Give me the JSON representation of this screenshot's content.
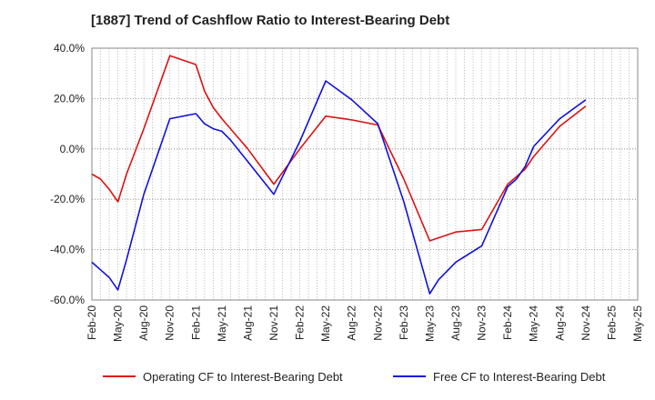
{
  "chart_data": {
    "type": "line",
    "title": "[1887]  Trend of Cashflow Ratio to Interest-Bearing Debt",
    "xlabel": "",
    "ylabel": "",
    "x_range": [
      "2020-02",
      "2025-05"
    ],
    "ylim": [
      -60,
      40
    ],
    "y_ticks": [
      40,
      20,
      0,
      -20,
      -40,
      -60
    ],
    "y_tick_labels": [
      "40.0%",
      "20.0%",
      "0.0%",
      "-20.0%",
      "-40.0%",
      "-60.0%"
    ],
    "x_tick_dates": [
      "2020-02",
      "2020-05",
      "2020-08",
      "2020-11",
      "2021-02",
      "2021-05",
      "2021-08",
      "2021-11",
      "2022-02",
      "2022-05",
      "2022-08",
      "2022-11",
      "2023-02",
      "2023-05",
      "2023-08",
      "2023-11",
      "2024-02",
      "2024-05",
      "2024-08",
      "2024-11",
      "2025-02",
      "2025-05"
    ],
    "x_tick_labels": [
      "Feb-20",
      "May-20",
      "Aug-20",
      "Nov-20",
      "Feb-21",
      "May-21",
      "Aug-21",
      "Nov-21",
      "Feb-22",
      "May-22",
      "Aug-22",
      "Nov-22",
      "Feb-23",
      "May-23",
      "Aug-23",
      "Nov-23",
      "Feb-24",
      "May-24",
      "Aug-24",
      "Nov-24",
      "Feb-25",
      "May-25"
    ],
    "grid": true,
    "legend_position": "bottom",
    "series": [
      {
        "name": "Operating CF to Interest-Bearing Debt",
        "color": "#dd1111",
        "points": [
          [
            "2020-02",
            -10
          ],
          [
            "2020-03",
            -12
          ],
          [
            "2020-04",
            -16
          ],
          [
            "2020-05",
            -21
          ],
          [
            "2020-06",
            -10
          ],
          [
            "2020-08",
            8
          ],
          [
            "2020-11",
            37
          ],
          [
            "2021-02",
            33.5
          ],
          [
            "2021-03",
            23
          ],
          [
            "2021-04",
            16.5
          ],
          [
            "2021-05",
            12
          ],
          [
            "2021-06",
            8
          ],
          [
            "2021-08",
            0
          ],
          [
            "2021-11",
            -14
          ],
          [
            "2022-02",
            0
          ],
          [
            "2022-05",
            13
          ],
          [
            "2022-08",
            11.5
          ],
          [
            "2022-11",
            9.5
          ],
          [
            "2023-02",
            -12
          ],
          [
            "2023-05",
            -36.5
          ],
          [
            "2023-08",
            -33
          ],
          [
            "2023-11",
            -32
          ],
          [
            "2024-02",
            -14
          ],
          [
            "2024-03",
            -11
          ],
          [
            "2024-04",
            -8
          ],
          [
            "2024-05",
            -3
          ],
          [
            "2024-08",
            9
          ],
          [
            "2024-11",
            17
          ]
        ]
      },
      {
        "name": "Free CF to Interest-Bearing Debt",
        "color": "#1111dd",
        "points": [
          [
            "2020-02",
            -45
          ],
          [
            "2020-03",
            -48
          ],
          [
            "2020-04",
            -51
          ],
          [
            "2020-05",
            -56
          ],
          [
            "2020-06",
            -44
          ],
          [
            "2020-08",
            -18
          ],
          [
            "2020-11",
            12
          ],
          [
            "2021-02",
            14
          ],
          [
            "2021-03",
            10
          ],
          [
            "2021-04",
            8
          ],
          [
            "2021-05",
            7
          ],
          [
            "2021-06",
            3.5
          ],
          [
            "2021-08",
            -5
          ],
          [
            "2021-11",
            -18
          ],
          [
            "2022-02",
            3
          ],
          [
            "2022-05",
            27
          ],
          [
            "2022-08",
            19.5
          ],
          [
            "2022-11",
            10
          ],
          [
            "2023-02",
            -21
          ],
          [
            "2023-05",
            -57.5
          ],
          [
            "2023-06",
            -52
          ],
          [
            "2023-08",
            -45
          ],
          [
            "2023-11",
            -38.5
          ],
          [
            "2024-02",
            -15
          ],
          [
            "2024-03",
            -12
          ],
          [
            "2024-04",
            -7
          ],
          [
            "2024-05",
            1
          ],
          [
            "2024-08",
            12
          ],
          [
            "2024-11",
            19.5
          ]
        ]
      }
    ]
  }
}
